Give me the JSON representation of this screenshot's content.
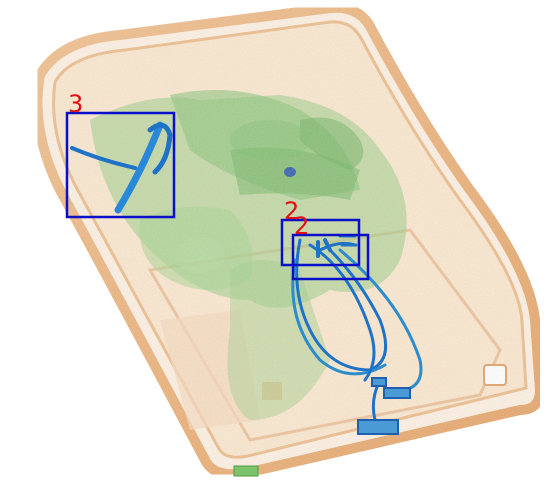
{
  "image": {
    "kind": "x-ray baggage scan",
    "background": "#ffffff"
  },
  "colors": {
    "box": "#0a10c8",
    "label": "#e01010",
    "organic": "#e8a862",
    "mixed": "#7cc46a",
    "metal": "#1e72c8"
  },
  "detections": [
    {
      "label": "3"
    },
    {
      "label": "2"
    },
    {
      "label": "2"
    }
  ]
}
